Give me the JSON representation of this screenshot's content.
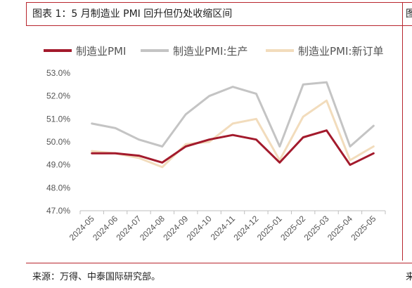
{
  "figure": {
    "title": "图表 1：5 月制造业 PMI 回升但仍处收缩区间",
    "next_title_fragment": "图",
    "source": "来源：万得、中泰国际研究部。",
    "next_source_fragment": "来"
  },
  "colors": {
    "frame": "#b8262e",
    "axis": "#bfbfbf"
  },
  "chart_data": {
    "type": "line",
    "title": "",
    "xlabel": "",
    "ylabel": "",
    "x": [
      "2024-05",
      "2024-06",
      "2024-07",
      "2024-08",
      "2024-09",
      "2024-10",
      "2024-11",
      "2024-12",
      "2025-01",
      "2025-02",
      "2025-03",
      "2025-04",
      "2025-05"
    ],
    "ylim": [
      47.0,
      53.0
    ],
    "yticks": [
      "47.0%",
      "48.0%",
      "49.0%",
      "50.0%",
      "51.0%",
      "52.0%",
      "53.0%"
    ],
    "grid": false,
    "legend_position": "top",
    "series": [
      {
        "name": "制造业PMI",
        "color": "#a31a2c",
        "values": [
          49.5,
          49.5,
          49.4,
          49.1,
          49.8,
          50.1,
          50.3,
          50.1,
          49.1,
          50.2,
          50.5,
          49.0,
          49.5
        ]
      },
      {
        "name": "制造业PMI:生产",
        "color": "#c4c4c4",
        "values": [
          50.8,
          50.6,
          50.1,
          49.8,
          51.2,
          52.0,
          52.4,
          52.1,
          49.8,
          52.5,
          52.6,
          49.8,
          50.7
        ]
      },
      {
        "name": "制造业PMI:新订单",
        "color": "#f2dcbc",
        "values": [
          49.6,
          49.5,
          49.3,
          48.9,
          49.9,
          50.0,
          50.8,
          51.0,
          49.2,
          51.1,
          51.8,
          49.2,
          49.8
        ]
      }
    ]
  }
}
